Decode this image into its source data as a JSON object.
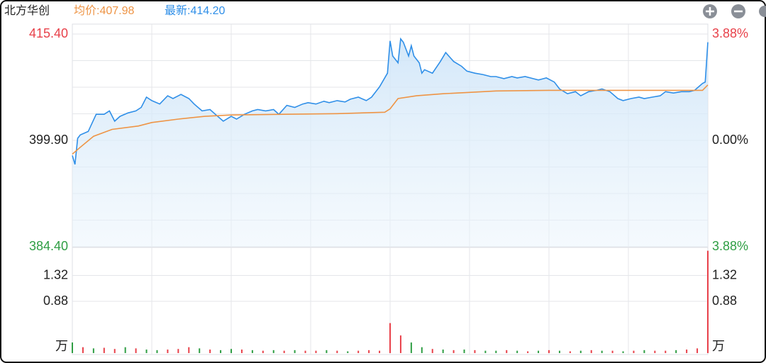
{
  "chart_data": {
    "type": "line",
    "title": "北方华创",
    "avg_text": "均价:407.98",
    "last_text": "最新:414.20",
    "xlim": [
      0,
      240
    ],
    "xgrid": [
      30,
      60,
      90,
      120,
      150,
      180,
      210
    ],
    "ylim": [
      384.4,
      415.4
    ],
    "yticks": [
      {
        "value": 415.4,
        "label": "415.40"
      },
      {
        "value": 399.9,
        "label": "399.90"
      },
      {
        "value": 384.4,
        "label": "384.40"
      }
    ],
    "ygrid": [
      411.525,
      407.65,
      403.775,
      396.025,
      392.15,
      388.275
    ],
    "y2lim": [
      -3.88,
      3.88
    ],
    "y2ticks": [
      {
        "value": 3.88,
        "label": "3.88%"
      },
      {
        "value": 0,
        "label": "0.00%"
      },
      {
        "value": -3.88,
        "label": "3.88%"
      }
    ],
    "series": [
      {
        "name": "最新",
        "color": "#2f8fe8",
        "x": [
          0,
          1,
          2,
          3,
          6,
          9,
          12,
          14,
          16,
          18,
          21,
          24,
          26,
          28,
          30,
          33,
          36,
          38,
          41,
          44,
          46,
          49,
          52,
          54,
          57,
          60,
          62,
          65,
          68,
          70,
          73,
          76,
          78,
          81,
          84,
          87,
          89,
          92,
          95,
          97,
          100,
          103,
          105,
          108,
          111,
          113,
          116,
          119,
          120,
          121,
          123,
          124,
          125,
          127,
          128,
          129,
          131,
          132,
          133,
          136,
          139,
          141,
          144,
          147,
          149,
          152,
          155,
          158,
          160,
          163,
          166,
          168,
          171,
          174,
          176,
          179,
          182,
          184,
          187,
          190,
          192,
          195,
          198,
          200,
          203,
          206,
          208,
          211,
          214,
          216,
          219,
          222,
          224,
          227,
          230,
          233,
          235,
          238,
          239,
          240
        ],
        "values": [
          397.7,
          396.4,
          400.2,
          400.7,
          401.2,
          403.7,
          403.7,
          404.2,
          402.7,
          403.4,
          403.9,
          404.2,
          404.7,
          406.2,
          405.7,
          405.2,
          406.4,
          406.0,
          406.6,
          406.0,
          405.2,
          404.2,
          404.4,
          403.7,
          402.7,
          403.4,
          403.0,
          403.7,
          404.2,
          404.4,
          404.2,
          404.4,
          403.7,
          405.0,
          404.7,
          405.2,
          405.4,
          405.2,
          405.6,
          405.4,
          405.7,
          405.5,
          405.9,
          406.2,
          405.7,
          406.2,
          407.7,
          409.7,
          414.4,
          412.2,
          411.2,
          414.7,
          414.2,
          412.2,
          413.7,
          412.2,
          411.2,
          409.7,
          410.2,
          409.7,
          411.4,
          412.7,
          411.4,
          410.7,
          410.0,
          409.7,
          409.5,
          409.2,
          409.2,
          408.9,
          409.2,
          409.0,
          409.2,
          408.9,
          408.7,
          409.0,
          408.4,
          407.4,
          406.7,
          407.0,
          406.4,
          407.0,
          407.2,
          407.4,
          407.0,
          406.0,
          405.7,
          406.0,
          406.2,
          406.0,
          406.2,
          406.4,
          407.0,
          406.8,
          407.0,
          407.0,
          407.2,
          408.2,
          408.4,
          414.2
        ]
      },
      {
        "name": "均价",
        "color": "#ee9445",
        "x": [
          0,
          3,
          8,
          15,
          25,
          30,
          40,
          50,
          60,
          80,
          100,
          118,
          120,
          123,
          130,
          140,
          150,
          160,
          180,
          200,
          220,
          238,
          240
        ],
        "values": [
          397.9,
          398.9,
          400.5,
          401.5,
          402.0,
          402.5,
          403.0,
          403.4,
          403.6,
          403.7,
          403.8,
          404.0,
          404.5,
          406.0,
          406.4,
          406.7,
          406.9,
          407.1,
          407.2,
          407.2,
          407.2,
          407.2,
          407.98
        ]
      }
    ],
    "volume": {
      "type": "bar",
      "ylim": [
        0,
        1.76
      ],
      "yticks": [
        1.32,
        0.88,
        {
          "value": 0,
          "label": "万"
        }
      ],
      "x": [
        0,
        4,
        8,
        12,
        16,
        20,
        24,
        28,
        32,
        36,
        40,
        44,
        48,
        52,
        56,
        60,
        64,
        68,
        72,
        76,
        80,
        84,
        88,
        92,
        96,
        100,
        104,
        108,
        112,
        116,
        120,
        124,
        128,
        132,
        136,
        140,
        144,
        148,
        152,
        156,
        160,
        164,
        168,
        172,
        176,
        180,
        184,
        188,
        192,
        196,
        200,
        204,
        208,
        212,
        216,
        220,
        224,
        228,
        232,
        236,
        240
      ],
      "values": [
        0.18,
        0.1,
        0.08,
        0.09,
        0.07,
        0.1,
        0.08,
        0.06,
        0.05,
        0.06,
        0.07,
        0.1,
        0.08,
        0.06,
        0.05,
        0.07,
        0.06,
        0.05,
        0.04,
        0.05,
        0.04,
        0.05,
        0.04,
        0.04,
        0.05,
        0.04,
        0.03,
        0.04,
        0.05,
        0.04,
        0.51,
        0.3,
        0.18,
        0.1,
        0.07,
        0.06,
        0.05,
        0.06,
        0.05,
        0.04,
        0.04,
        0.05,
        0.04,
        0.03,
        0.04,
        0.05,
        0.04,
        0.03,
        0.04,
        0.05,
        0.04,
        0.04,
        0.03,
        0.04,
        0.05,
        0.04,
        0.04,
        0.05,
        0.06,
        0.08,
        1.74
      ],
      "colors": [
        "#2f9e44",
        "#e8414a",
        "#2f9e44",
        "#e8414a",
        "#e8414a",
        "#2f9e44",
        "#e8414a",
        "#2f9e44",
        "#2f9e44",
        "#e8414a",
        "#e8414a",
        "#e8414a",
        "#2f9e44",
        "#e8414a",
        "#2f9e44",
        "#2f9e44",
        "#e8414a",
        "#2f9e44",
        "#e8414a",
        "#2f9e44",
        "#e8414a",
        "#2f9e44",
        "#e8414a",
        "#e8414a",
        "#2f9e44",
        "#e8414a",
        "#2f9e44",
        "#e8414a",
        "#e8414a",
        "#e8414a",
        "#e8414a",
        "#e8414a",
        "#2f9e44",
        "#2f9e44",
        "#e8414a",
        "#2f9e44",
        "#e8414a",
        "#2f9e44",
        "#e8414a",
        "#2f9e44",
        "#2f9e44",
        "#e8414a",
        "#2f9e44",
        "#e8414a",
        "#2f9e44",
        "#e8414a",
        "#2f9e44",
        "#e8414a",
        "#2f9e44",
        "#e8414a",
        "#2f9e44",
        "#e8414a",
        "#2f9e44",
        "#e8414a",
        "#2f9e44",
        "#e8414a",
        "#e8414a",
        "#2f9e44",
        "#e8414a",
        "#e8414a",
        "#e8414a"
      ]
    }
  }
}
